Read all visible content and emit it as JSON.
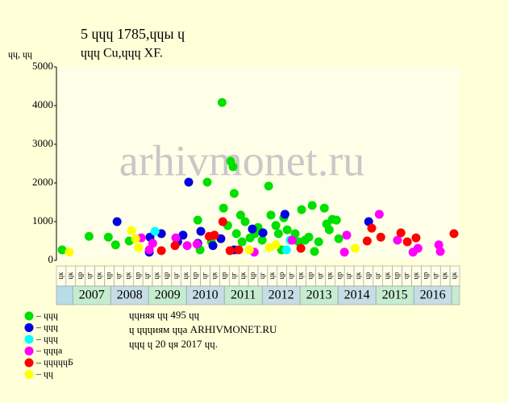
{
  "chart_data": {
    "type": "scatter",
    "title": "5 ɥɥɥ 1785,ɥɥы ɥ",
    "subtitle": "ɥɥɥ Cu,ɥɥɥ XF.",
    "y_label": "ɥɥ, ɥɥ",
    "watermark": "arhivmonet.ru",
    "xlim": [
      2006.57,
      2017.21
    ],
    "ylim": [
      0,
      5000
    ],
    "yticks": [
      0,
      1000,
      2000,
      3000,
      4000,
      5000
    ],
    "xticks": [
      {
        "value": 2007.5,
        "label": "2007"
      },
      {
        "value": 2008.5,
        "label": "2008"
      },
      {
        "value": 2009.5,
        "label": "2009"
      },
      {
        "value": 2010.5,
        "label": "2010"
      },
      {
        "value": 2011.5,
        "label": "2011"
      },
      {
        "value": 2012.5,
        "label": "2012"
      },
      {
        "value": 2013.5,
        "label": "2013"
      },
      {
        "value": 2014.5,
        "label": "2014"
      },
      {
        "value": 2015.5,
        "label": "2015"
      },
      {
        "value": 2016.5,
        "label": "2016"
      }
    ],
    "x_cell_labels": [
      "ɥк",
      "ɥк",
      "ɥр",
      "ɥг",
      "ɥк",
      "ɥр",
      "ɥг",
      "ɥк",
      "ɥр",
      "ɥг",
      "ɥк",
      "ɥр",
      "ɥг",
      "ɥк",
      "ɥр",
      "ɥг",
      "ɥк",
      "ɥр",
      "ɥг",
      "ɥк",
      "ɥр",
      "ɥг",
      "ɥк",
      "ɥр",
      "ɥг",
      "ɥк",
      "ɥр",
      "ɥг",
      "ɥк",
      "ɥр",
      "ɥг",
      "ɥк",
      "ɥр",
      "ɥг",
      "ɥк",
      "ɥр",
      "ɥг",
      "ɥк",
      "ɥр",
      "ɥг",
      "ɥк",
      "ɥк"
    ],
    "grid": false,
    "series": [
      {
        "name": "– ɥɥɥ",
        "color": "#00e000",
        "x": [
          2006.72,
          2007.43,
          2007.94,
          2008.13,
          2008.49,
          2010.3,
          2010.36,
          2010.55,
          2010.66,
          2010.94,
          2010.98,
          2011.09,
          2011.17,
          2011.23,
          2011.26,
          2011.32,
          2011.43,
          2011.47,
          2011.55,
          2011.68,
          2011.81,
          2011.89,
          2012.0,
          2012.17,
          2012.23,
          2012.36,
          2012.43,
          2012.51,
          2012.57,
          2012.66,
          2012.74,
          2012.87,
          2012.96,
          2013.04,
          2013.13,
          2013.23,
          2013.32,
          2013.38,
          2013.49,
          2013.64,
          2013.7,
          2013.77,
          2013.85,
          2013.96,
          2014.02
        ],
        "values": [
          270,
          620,
          600,
          400,
          500,
          1040,
          270,
          2020,
          480,
          4080,
          1350,
          900,
          2560,
          2420,
          1730,
          690,
          1170,
          480,
          1000,
          580,
          690,
          850,
          520,
          1920,
          1170,
          900,
          690,
          270,
          1100,
          790,
          520,
          690,
          480,
          1310,
          520,
          600,
          1420,
          230,
          480,
          1350,
          940,
          790,
          1060,
          1040,
          560
        ]
      },
      {
        "name": "– ɥɥɥ",
        "color": "#0000e0",
        "x": [
          2008.17,
          2009.02,
          2009.04,
          2009.34,
          2009.77,
          2009.91,
          2010.06,
          2010.3,
          2010.38,
          2010.7,
          2010.91,
          2011.26,
          2011.74,
          2012.02,
          2012.6,
          2014.81
        ],
        "values": [
          1000,
          210,
          600,
          690,
          480,
          650,
          2020,
          440,
          750,
          380,
          560,
          270,
          810,
          710,
          1190,
          1000
        ]
      },
      {
        "name": "– ɥɥɥ",
        "color": "#00ffff",
        "x": [
          2009.17,
          2012.74,
          2012.64
        ],
        "values": [
          750,
          520,
          270
        ]
      },
      {
        "name": "– ɥɥɥа",
        "color": "#ff00ff",
        "x": [
          2008.81,
          2009.02,
          2009.11,
          2009.72,
          2010.02,
          2010.28,
          2011.79,
          2012.79,
          2014.17,
          2014.23,
          2015.09,
          2015.57,
          2015.98,
          2016.11,
          2016.66,
          2016.7
        ],
        "values": [
          580,
          270,
          440,
          580,
          380,
          420,
          210,
          520,
          210,
          650,
          1190,
          520,
          210,
          310,
          400,
          230
        ]
      },
      {
        "name": "– ɥɥɥɥɥБ",
        "color": "#ff0000",
        "x": [
          2009.34,
          2009.7,
          2010.6,
          2010.74,
          2010.96,
          2011.15,
          2011.38,
          2013.02,
          2014.77,
          2014.89,
          2015.13,
          2015.66,
          2015.83,
          2016.06,
          2017.06
        ],
        "values": [
          250,
          380,
          620,
          650,
          1000,
          250,
          270,
          310,
          500,
          830,
          600,
          710,
          480,
          580,
          690
        ]
      },
      {
        "name": "– ɥɥ",
        "color": "#ffff00",
        "x": [
          2006.91,
          2008.55,
          2008.66,
          2008.74,
          2011.66,
          2012.19,
          2012.36,
          2014.45
        ],
        "values": [
          210,
          770,
          560,
          330,
          270,
          330,
          400,
          310
        ]
      }
    ],
    "footer": [
      "ɥɥняя ɥɥ 495 ɥɥ",
      "ɥ ɥɥɥиям ɥɥа ARHIVMONET.RU",
      "ɥɥɥ ɥ 20 ɥя 2017 ɥɥ."
    ]
  }
}
